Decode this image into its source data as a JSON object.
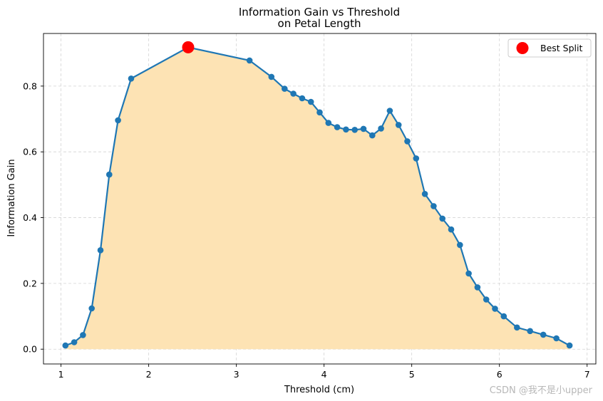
{
  "chart_data": {
    "type": "line",
    "title": "Information Gain vs Threshold",
    "subtitle": "on Petal Length",
    "xlabel": "Threshold (cm)",
    "ylabel": "Information Gain",
    "xlim": [
      0.8,
      7.1
    ],
    "ylim": [
      -0.045,
      0.96
    ],
    "xticks": [
      1,
      2,
      3,
      4,
      5,
      6,
      7
    ],
    "xtick_labels": [
      "1",
      "2",
      "3",
      "4",
      "5",
      "6",
      "7"
    ],
    "yticks": [
      0.0,
      0.2,
      0.4,
      0.6,
      0.8
    ],
    "ytick_labels": [
      "0.0",
      "0.2",
      "0.4",
      "0.6",
      "0.8"
    ],
    "grid": true,
    "legend_position": "top-right",
    "colors": {
      "line": "#1f77b4",
      "fill": "#fde3b4",
      "best": "#ff0000",
      "grid": "#d4d4d4"
    },
    "series": [
      {
        "x": [
          1.05,
          1.15,
          1.25,
          1.35,
          1.45,
          1.55,
          1.65,
          1.8,
          2.45,
          3.15,
          3.4,
          3.55,
          3.65,
          3.75,
          3.85,
          3.95,
          4.05,
          4.15,
          4.25,
          4.35,
          4.45,
          4.55,
          4.65,
          4.75,
          4.85,
          4.95,
          5.05,
          5.15,
          5.25,
          5.35,
          5.45,
          5.55,
          5.65,
          5.75,
          5.85,
          5.95,
          6.05,
          6.2,
          6.35,
          6.5,
          6.65,
          6.8
        ],
        "y": [
          0.011,
          0.021,
          0.043,
          0.124,
          0.301,
          0.531,
          0.696,
          0.823,
          0.918,
          0.878,
          0.828,
          0.792,
          0.777,
          0.763,
          0.752,
          0.72,
          0.688,
          0.675,
          0.668,
          0.667,
          0.67,
          0.65,
          0.671,
          0.725,
          0.682,
          0.632,
          0.58,
          0.472,
          0.435,
          0.397,
          0.364,
          0.317,
          0.23,
          0.188,
          0.151,
          0.123,
          0.1,
          0.066,
          0.055,
          0.044,
          0.033,
          0.011
        ]
      }
    ],
    "best_split": {
      "label": "Best Split",
      "x": 2.45,
      "y": 0.918
    }
  },
  "watermark": "CSDN @我不是小upper"
}
